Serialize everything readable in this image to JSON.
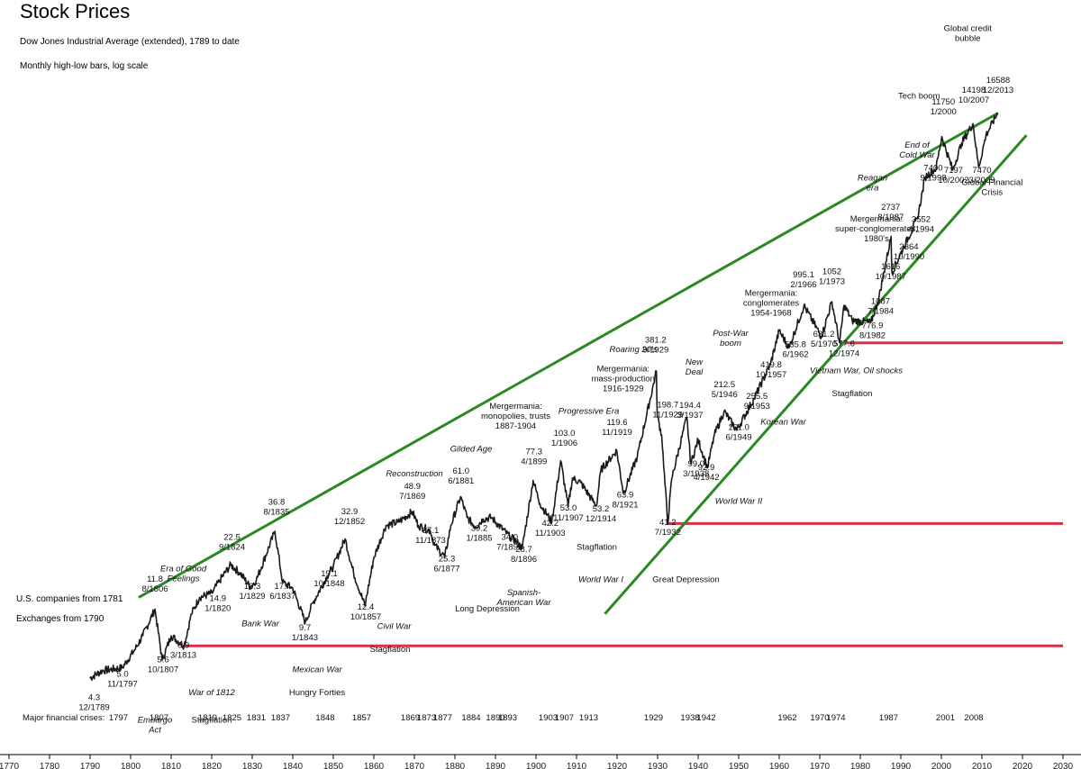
{
  "chart_data": {
    "type": "line",
    "title": "Stock Prices",
    "subtitle": "Dow Jones Industrial Average (extended), 1789 to date",
    "subtitle2": "Monthly high-low bars, log scale",
    "scale": "log",
    "xlim": [
      1770,
      2030
    ],
    "x_ticks": [
      1770,
      1780,
      1790,
      1800,
      1810,
      1820,
      1830,
      1840,
      1850,
      1860,
      1870,
      1880,
      1890,
      1900,
      1910,
      1920,
      1930,
      1940,
      1950,
      1960,
      1970,
      1980,
      1990,
      2000,
      2010,
      2020,
      2030
    ],
    "series": [
      {
        "x": [
          1789.9,
          1793,
          1797.9,
          1801,
          1803,
          1806,
          1807.8,
          1810,
          1813.2,
          1815,
          1817,
          1820.1,
          1822,
          1824.7,
          1827,
          1829.5,
          1831,
          1835.6,
          1837.5,
          1840,
          1843.1,
          1845,
          1848.5,
          1850,
          1852.9,
          1855,
          1857.8,
          1860,
          1863,
          1866,
          1869.5,
          1871,
          1873.9,
          1875,
          1877.5,
          1879,
          1881.4,
          1883,
          1885.1,
          1887,
          1889,
          1893.5,
          1895,
          1896.6,
          1899.3,
          1901,
          1903.9,
          1906.1,
          1907.9,
          1909,
          1911,
          1914.9,
          1916,
          1919.9,
          1921.6,
          1925,
          1929.7,
          1929.9,
          1931,
          1932.5,
          1933.5,
          1937.2,
          1938.2,
          1940,
          1942.3,
          1944,
          1946.4,
          1949.5,
          1953.8,
          1957.8,
          1960,
          1962.4,
          1966.1,
          1970.4,
          1973,
          1974.9,
          1976,
          1978,
          1982.6,
          1984.5,
          1987.6,
          1987.8,
          1990.8,
          1994.1,
          1996,
          1998.7,
          2000.1,
          2002.8,
          2005,
          2007.8,
          2009.2,
          2011,
          2013.9
        ],
        "values": [
          4.3,
          4.8,
          5.0,
          6.5,
          8.0,
          11.8,
          5.6,
          8.0,
          6.9,
          11.0,
          14.0,
          14.9,
          18.0,
          22.5,
          20.0,
          16.3,
          18.0,
          36.8,
          17.4,
          16.0,
          9.7,
          13.0,
          19.1,
          22.0,
          32.9,
          20.0,
          12.4,
          25.0,
          40.0,
          42.0,
          48.9,
          40.0,
          37.1,
          30.0,
          25.3,
          40.0,
          61.0,
          45.0,
          39.2,
          44.0,
          45.0,
          34.0,
          32.0,
          28.7,
          77.3,
          55.0,
          42.2,
          103.0,
          53.0,
          80.0,
          75.0,
          53.2,
          90.0,
          119.6,
          63.9,
          110.0,
          381.2,
          198.7,
          150.0,
          41.2,
          80.0,
          194.4,
          99.0,
          140.0,
          92.9,
          150.0,
          212.5,
          161.0,
          255.5,
          419.8,
          690.0,
          535.8,
          995.1,
          631.2,
          1052,
          577.6,
          1000,
          800,
          776.9,
          1087,
          2737,
          1616,
          2364,
          3552,
          6500,
          7400,
          11750,
          7197,
          10700,
          14198,
          7470,
          12000,
          16588
        ]
      }
    ],
    "upper_channel": {
      "x": [
        1802,
        2014
      ],
      "values": [
        14,
        16588
      ]
    },
    "lower_channel": {
      "x": [
        1917,
        2021
      ],
      "values": [
        11,
        12000
      ]
    },
    "support_lines": [
      {
        "x": [
          1812.5,
          2030
        ],
        "value": 6.9
      },
      {
        "x": [
          1932.5,
          2030
        ],
        "value": 41.2
      },
      {
        "x": [
          1975,
          2030
        ],
        "value": 577.6
      }
    ],
    "left_notes": [
      "U.S. companies from 1781",
      "Exchanges from 1790"
    ],
    "crises_label": "Major financial crises:",
    "crises": [
      "1797",
      "1807",
      "1819",
      "1825",
      "1831",
      "1837",
      "1848",
      "1857",
      "1869",
      "1873",
      "1877",
      "1884",
      "1890",
      "1893",
      "1903",
      "1907",
      "1913",
      "1929",
      "1938",
      "1942",
      "1962",
      "1970",
      "1974",
      "1987",
      "2001",
      "2008"
    ],
    "crisis_years": [
      1797,
      1807,
      1819,
      1825,
      1831,
      1837,
      1848,
      1857,
      1869,
      1873,
      1877,
      1884,
      1890,
      1893,
      1903,
      1907,
      1913,
      1929,
      1938,
      1942,
      1962,
      1970,
      1974,
      1987,
      2001,
      2008
    ],
    "value_labels": [
      {
        "date": "12/1789",
        "value": "4.3",
        "x": 1791,
        "v": 2.7
      },
      {
        "date": "11/1797",
        "value": "5.0",
        "x": 1798,
        "v": 3.8
      },
      {
        "date": "10/1807",
        "value": "5.6",
        "x": 1808,
        "v": 4.7
      },
      {
        "date": "3/1813",
        "value": "6.9",
        "x": 1813,
        "v": 5.8
      },
      {
        "date": "8/1806",
        "value": "11.8",
        "x": 1806,
        "v": 15.2
      },
      {
        "date": "1/1820",
        "value": "14.9",
        "x": 1821.5,
        "v": 11.5
      },
      {
        "date": "9/1824",
        "value": "22.5",
        "x": 1825,
        "v": 28
      },
      {
        "date": "1/1829",
        "value": "16.3",
        "x": 1830,
        "v": 13.7
      },
      {
        "date": "6/1837",
        "value": "17.4",
        "x": 1837.5,
        "v": 13.7
      },
      {
        "date": "8/1835",
        "value": "36.8",
        "x": 1836,
        "v": 47
      },
      {
        "date": "1/1843",
        "value": "9.7",
        "x": 1843,
        "v": 7.5
      },
      {
        "date": "10/1848",
        "value": "19.1",
        "x": 1849,
        "v": 16.5
      },
      {
        "date": "12/1852",
        "value": "32.9",
        "x": 1854,
        "v": 41
      },
      {
        "date": "10/1857",
        "value": "12.4",
        "x": 1858,
        "v": 10.1
      },
      {
        "date": "7/1869",
        "value": "48.9",
        "x": 1869.5,
        "v": 59
      },
      {
        "date": "11/1873",
        "value": "37.1",
        "x": 1874,
        "v": 31
      },
      {
        "date": "6/1877",
        "value": "25.3",
        "x": 1878,
        "v": 20.5
      },
      {
        "date": "6/1881",
        "value": "61.0",
        "x": 1881.5,
        "v": 74
      },
      {
        "date": "1/1885",
        "value": "39.2",
        "x": 1886,
        "v": 32
      },
      {
        "date": "7/1893",
        "value": "34.0",
        "x": 1893.5,
        "v": 28
      },
      {
        "date": "8/1896",
        "value": "28.7",
        "x": 1897,
        "v": 23.5
      },
      {
        "date": "4/1899",
        "value": "77.3",
        "x": 1899.5,
        "v": 98
      },
      {
        "date": "11/1903",
        "value": "42.2",
        "x": 1903.5,
        "v": 34.5
      },
      {
        "date": "1/1906",
        "value": "103.0",
        "x": 1907,
        "v": 128
      },
      {
        "date": "11/1907",
        "value": "53.0",
        "x": 1908,
        "v": 43
      },
      {
        "date": "12/1914",
        "value": "53.2",
        "x": 1916,
        "v": 42.5
      },
      {
        "date": "11/1919",
        "value": "119.6",
        "x": 1920,
        "v": 150
      },
      {
        "date": "8/1921",
        "value": "63.9",
        "x": 1922,
        "v": 52
      },
      {
        "date": "9/1929",
        "value": "381.2",
        "x": 1929.5,
        "v": 500
      },
      {
        "date": "11/1929",
        "value": "198.7",
        "x": 1932.5,
        "v": 194
      },
      {
        "date": "7/1932",
        "value": "41.2",
        "x": 1932.5,
        "v": 35
      },
      {
        "date": "3/1937",
        "value": "194.4",
        "x": 1938,
        "v": 193
      },
      {
        "date": "3/1938",
        "value": "99.0",
        "x": 1939.5,
        "v": 82
      },
      {
        "date": "4/1942",
        "value": "92.9",
        "x": 1942,
        "v": 78
      },
      {
        "date": "5/1946",
        "value": "212.5",
        "x": 1946.5,
        "v": 262
      },
      {
        "date": "6/1949",
        "value": "161.0",
        "x": 1950,
        "v": 140
      },
      {
        "date": "9/1953",
        "value": "255.5",
        "x": 1954.5,
        "v": 220
      },
      {
        "date": "10/1957",
        "value": "419.8",
        "x": 1958,
        "v": 350
      },
      {
        "date": "6/1962",
        "value": "535.8",
        "x": 1964,
        "v": 470
      },
      {
        "date": "2/1966",
        "value": "995.1",
        "x": 1966,
        "v": 1300
      },
      {
        "date": "5/1970",
        "value": "631.2",
        "x": 1971,
        "v": 545
      },
      {
        "date": "1/1973",
        "value": "1052",
        "x": 1973,
        "v": 1360
      },
      {
        "date": "12/1974",
        "value": "577.6",
        "x": 1976,
        "v": 475
      },
      {
        "date": "8/1982",
        "value": "776.9",
        "x": 1983,
        "v": 620
      },
      {
        "date": "7/1984",
        "value": "1087",
        "x": 1985,
        "v": 880
      },
      {
        "date": "10/1987",
        "value": "1616",
        "x": 1987.5,
        "v": 1460
      },
      {
        "date": "8/1987",
        "value": "2737",
        "x": 1987.5,
        "v": 3500
      },
      {
        "date": "10/1990",
        "value": "2364",
        "x": 1992,
        "v": 1960
      },
      {
        "date": "4/1994",
        "value": "3552",
        "x": 1995,
        "v": 2930
      },
      {
        "date": "9/1998",
        "value": "7400",
        "x": 1998,
        "v": 6200
      },
      {
        "date": "1/2000",
        "value": "11750",
        "x": 2000.5,
        "v": 16300
      },
      {
        "date": "10/2002",
        "value": "7197",
        "x": 2003,
        "v": 6000
      },
      {
        "date": "10/2007",
        "value": "14198",
        "x": 2008,
        "v": 19300
      },
      {
        "date": "3/2009",
        "value": "7470",
        "x": 2010,
        "v": 6000
      },
      {
        "date": "12/2013",
        "value": "16588",
        "x": 2014,
        "v": 22300
      }
    ],
    "events": [
      {
        "lines": [
          "Era of Good",
          "Feelings"
        ],
        "italic": true,
        "x": 1813,
        "v": 20.5
      },
      {
        "lines": [
          "Embargo",
          "Act"
        ],
        "italic": true,
        "x": 1806,
        "v": 2.25
      },
      {
        "lines": [
          "War of 1812"
        ],
        "italic": true,
        "x": 1820,
        "v": 3.35
      },
      {
        "lines": [
          "Stagflation"
        ],
        "italic": false,
        "x": 1820,
        "v": 2.25
      },
      {
        "lines": [
          "Bank War"
        ],
        "italic": true,
        "x": 1832,
        "v": 9.2
      },
      {
        "lines": [
          "Mexican War"
        ],
        "italic": true,
        "x": 1846,
        "v": 4.7
      },
      {
        "lines": [
          "Hungry Forties"
        ],
        "italic": false,
        "x": 1846,
        "v": 3.35
      },
      {
        "lines": [
          "Civil War"
        ],
        "italic": true,
        "x": 1865,
        "v": 8.8
      },
      {
        "lines": [
          "Stagflation"
        ],
        "italic": false,
        "x": 1864,
        "v": 6.3
      },
      {
        "lines": [
          "Reconstruction"
        ],
        "italic": true,
        "x": 1870,
        "v": 82
      },
      {
        "lines": [
          "Gilded Age"
        ],
        "italic": true,
        "x": 1884,
        "v": 118
      },
      {
        "lines": [
          "Long Depression"
        ],
        "italic": false,
        "x": 1888,
        "v": 11.4
      },
      {
        "lines": [
          "Mergermania:",
          "monopolies, trusts",
          "1887-1904"
        ],
        "italic": false,
        "x": 1895,
        "v": 220
      },
      {
        "lines": [
          "Spanish-",
          "American War"
        ],
        "italic": true,
        "x": 1897,
        "v": 14.5
      },
      {
        "lines": [
          "Progressive Era"
        ],
        "italic": true,
        "x": 1913,
        "v": 205
      },
      {
        "lines": [
          "Stagflation"
        ],
        "italic": false,
        "x": 1915,
        "v": 28
      },
      {
        "lines": [
          "World War I"
        ],
        "italic": true,
        "x": 1916,
        "v": 17.5
      },
      {
        "lines": [
          "Roaring 20's"
        ],
        "italic": true,
        "x": 1924,
        "v": 505
      },
      {
        "lines": [
          "Mergermania:",
          "mass-production",
          "1916-1929"
        ],
        "italic": false,
        "x": 1921.5,
        "v": 380
      },
      {
        "lines": [
          "Great Depression"
        ],
        "italic": false,
        "x": 1937,
        "v": 17.5
      },
      {
        "lines": [
          "New",
          "Deal"
        ],
        "italic": true,
        "x": 1939,
        "v": 420
      },
      {
        "lines": [
          "World War II"
        ],
        "italic": true,
        "x": 1950,
        "v": 55
      },
      {
        "lines": [
          "Post-War",
          "boom"
        ],
        "italic": true,
        "x": 1948,
        "v": 640
      },
      {
        "lines": [
          "Korean War"
        ],
        "italic": true,
        "x": 1961,
        "v": 175
      },
      {
        "lines": [
          "Mergermania:",
          "conglomerates",
          "1954-1968"
        ],
        "italic": false,
        "x": 1958,
        "v": 1150
      },
      {
        "lines": [
          "Vietnam War, Oil shocks"
        ],
        "italic": true,
        "x": 1979,
        "v": 370
      },
      {
        "lines": [
          "Stagflation"
        ],
        "italic": false,
        "x": 1978,
        "v": 265
      },
      {
        "lines": [
          "Mergermania:",
          "super-conglomerates,",
          "1980's"
        ],
        "italic": false,
        "x": 1984,
        "v": 3400
      },
      {
        "lines": [
          "Reagan",
          "era"
        ],
        "italic": true,
        "x": 1983,
        "v": 6200
      },
      {
        "lines": [
          "End of",
          "Cold War"
        ],
        "italic": true,
        "x": 1994,
        "v": 10000
      },
      {
        "lines": [
          "Tech boom"
        ],
        "italic": false,
        "x": 1994.5,
        "v": 20500
      },
      {
        "lines": [
          "Global credit",
          "bubble"
        ],
        "italic": false,
        "x": 2006.5,
        "v": 55000
      },
      {
        "lines": [
          "Global Financial",
          "Crisis"
        ],
        "italic": false,
        "x": 2012.5,
        "v": 5800
      }
    ],
    "colors": {
      "series": "#1a1a1a",
      "channel": "#2a8a22",
      "support": "#d83048"
    }
  }
}
